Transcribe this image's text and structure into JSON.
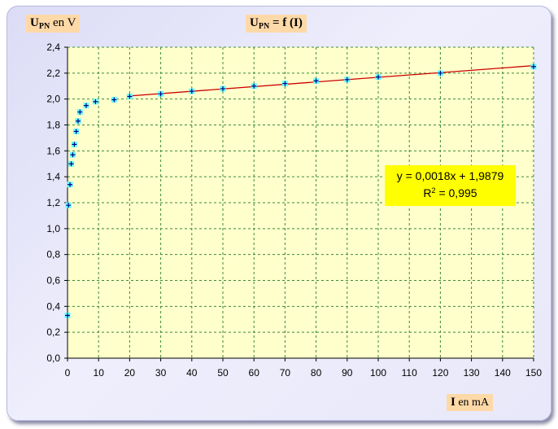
{
  "chart_data": {
    "type": "scatter",
    "title_u": "U",
    "title_sub": "PN",
    "title_rest": " = f (I)",
    "ylabel_u": "U",
    "ylabel_sub": "PN",
    "ylabel_rest": " en V",
    "xlabel_i": "I",
    "xlabel_rest": " en mA",
    "xlim": [
      0,
      150
    ],
    "ylim": [
      0,
      2.4
    ],
    "xticks": [
      0,
      10,
      20,
      30,
      40,
      50,
      60,
      70,
      80,
      90,
      100,
      110,
      120,
      130,
      140,
      150
    ],
    "yticks": [
      0,
      0.2,
      0.4,
      0.6,
      0.8,
      1.0,
      1.2,
      1.4,
      1.6,
      1.8,
      2.0,
      2.2,
      2.4
    ],
    "ytick_labels": [
      "0,0",
      "0,2",
      "0,4",
      "0,6",
      "0,8",
      "1,0",
      "1,2",
      "1,4",
      "1,6",
      "1,8",
      "2,0",
      "2,2",
      "2,4"
    ],
    "grid": true,
    "x": [
      0,
      0.3,
      0.8,
      1.2,
      1.7,
      2.2,
      2.8,
      3.4,
      4.0,
      6.0,
      9.0,
      15,
      20,
      30,
      40,
      50,
      60,
      70,
      80,
      90,
      100,
      120,
      150
    ],
    "y": [
      0.33,
      1.18,
      1.34,
      1.5,
      1.57,
      1.65,
      1.75,
      1.83,
      1.9,
      1.95,
      1.98,
      1.995,
      2.02,
      2.04,
      2.06,
      2.08,
      2.1,
      2.12,
      2.14,
      2.15,
      2.17,
      2.2,
      2.25
    ],
    "trendline": {
      "slope": 0.0018,
      "intercept": 1.9879,
      "x_range": [
        20,
        150
      ]
    },
    "equation_text": "y = 0,0018x + 1,9879",
    "r2_label": "R",
    "r2_exp": "2",
    "r2_value": " = 0,995",
    "colors": {
      "plot_bg": "#ffffcc",
      "grid": "#3a8a3a",
      "marker": "#66ffff",
      "marker_line": "#000080",
      "trendline": "#cc0000",
      "label_bg": "#fed9a8",
      "equation_bg": "#ffff00",
      "frame_bg": "#e8e8fa"
    }
  }
}
